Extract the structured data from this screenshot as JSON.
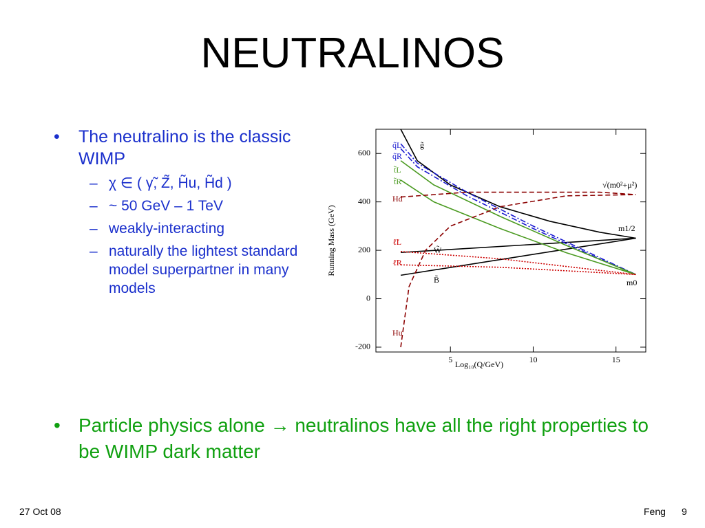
{
  "title": "NEUTRALINOS",
  "bullets": [
    {
      "text": "The neutralino is the classic WIMP",
      "subs": [
        "χ ∈ ( γ̃, Z̃, H̃u, H̃d )",
        "~ 50 GeV – 1 TeV",
        "weakly-interacting",
        "naturally the lightest standard model superpartner in many models"
      ]
    },
    {
      "text": "Particle physics alone → neutralinos have all the right properties to be WIMP dark matter"
    }
  ],
  "footer": {
    "date": "27 Oct 08",
    "author": "Feng",
    "page": "9"
  },
  "chart_data": {
    "type": "line",
    "xlabel": "Log₁₀(Q/GeV)",
    "ylabel": "Running Mass (GeV)",
    "xlim": [
      0.5,
      16.8
    ],
    "ylim": [
      -220,
      700
    ],
    "xticks": [
      5,
      10,
      15
    ],
    "yticks": [
      -200,
      0,
      200,
      400,
      600
    ],
    "series": [
      {
        "name": "g̃",
        "color": "#000000",
        "dash": "solid",
        "x": [
          2,
          3,
          5,
          8,
          11,
          14,
          16.2
        ],
        "values": [
          700,
          570,
          470,
          380,
          320,
          275,
          250
        ]
      },
      {
        "name": "W̃",
        "color": "#000000",
        "dash": "solid",
        "x": [
          2,
          16.2
        ],
        "values": [
          191,
          250
        ]
      },
      {
        "name": "B̃",
        "color": "#000000",
        "dash": "solid",
        "x": [
          2,
          16.2
        ],
        "values": [
          97,
          250
        ]
      },
      {
        "name": "q̃L",
        "color": "#1a1ad0",
        "dash": "dashdot",
        "x": [
          2,
          3,
          6,
          10,
          14,
          16.2
        ],
        "values": [
          640,
          560,
          440,
          300,
          170,
          100
        ]
      },
      {
        "name": "q̃R",
        "color": "#1a1ad0",
        "dash": "dashdot",
        "x": [
          2,
          3,
          6,
          10,
          14,
          16.2
        ],
        "values": [
          620,
          545,
          425,
          290,
          165,
          100
        ]
      },
      {
        "name": "t̃L",
        "color": "#4a9a20",
        "dash": "solid",
        "x": [
          2,
          4,
          8,
          12,
          16.2
        ],
        "values": [
          570,
          470,
          340,
          220,
          100
        ]
      },
      {
        "name": "t̃R",
        "color": "#4a9a20",
        "dash": "solid",
        "x": [
          2,
          4,
          8,
          12,
          16.2
        ],
        "values": [
          490,
          400,
          290,
          190,
          100
        ]
      },
      {
        "name": "Hd",
        "color": "#8b0000",
        "dash": "dashed",
        "x": [
          2,
          6,
          10,
          14,
          16.2
        ],
        "values": [
          420,
          440,
          440,
          440,
          430
        ]
      },
      {
        "name": "Hu",
        "color": "#8b0000",
        "dash": "dashed",
        "x": [
          2,
          2.5,
          3.5,
          5,
          8,
          12,
          16.2
        ],
        "values": [
          -200,
          50,
          200,
          300,
          380,
          425,
          430
        ]
      },
      {
        "name": "ℓ̃L",
        "color": "#cc0000",
        "dash": "dotted",
        "x": [
          2,
          8,
          16.2
        ],
        "values": [
          195,
          165,
          100
        ]
      },
      {
        "name": "ℓ̃R",
        "color": "#cc0000",
        "dash": "dotted",
        "x": [
          2,
          8,
          16.2
        ],
        "values": [
          140,
          130,
          100
        ]
      }
    ],
    "annotations": [
      "√(m0²+μ²)",
      "m1/2",
      "m0"
    ]
  }
}
